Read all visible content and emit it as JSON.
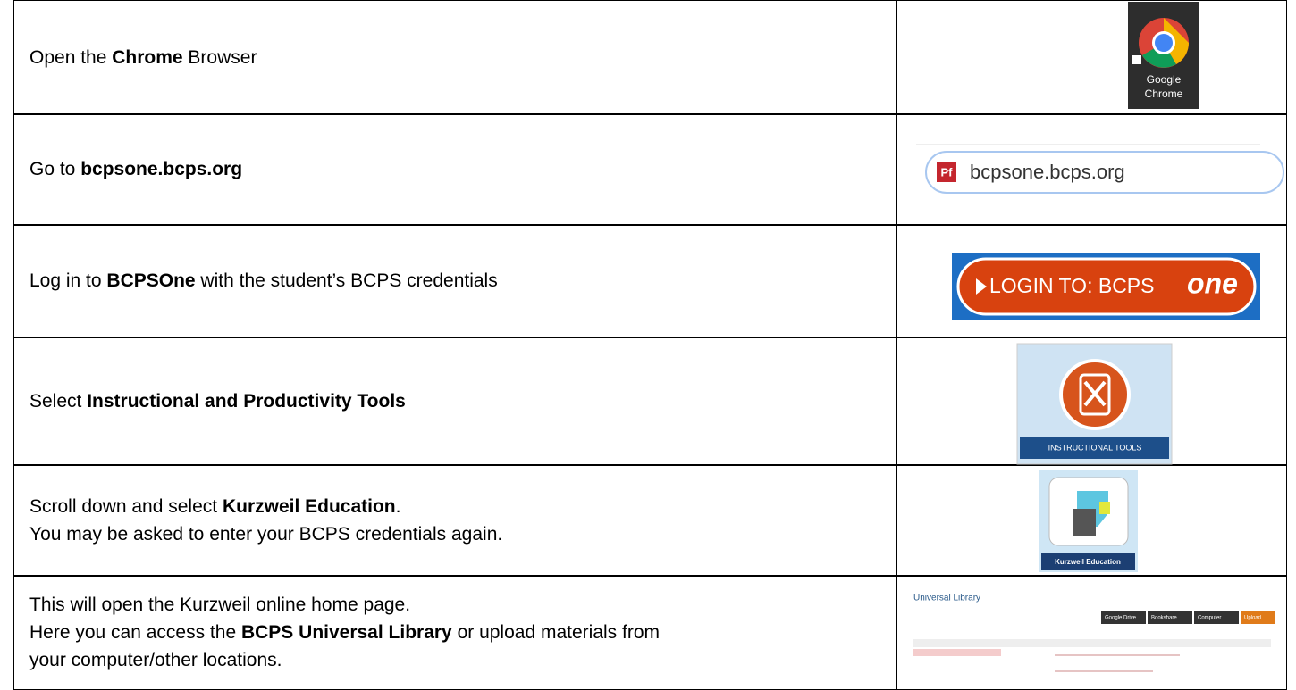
{
  "rows": [
    {
      "lines": [
        [
          {
            "text": "Open the "
          },
          {
            "text": "Chrome",
            "bold": true
          },
          {
            "text": " Browser"
          }
        ]
      ],
      "image": {
        "lines": [
          "Google",
          "Chrome"
        ]
      }
    },
    {
      "lines": [
        [
          {
            "text": "Go to "
          },
          {
            "text": "bcpsone.bcps.org",
            "bold": true
          }
        ]
      ],
      "image": {
        "icon": "Pf",
        "url": "bcpsone.bcps.org"
      }
    },
    {
      "lines": [
        [
          {
            "text": "Log in to "
          },
          {
            "text": "BCPSOne",
            "bold": true
          },
          {
            "text": " with the student’s BCPS credentials"
          }
        ]
      ],
      "image": {
        "text": "LOGIN TO: BCPS",
        "logo": "one"
      }
    },
    {
      "lines": [
        [
          {
            "text": "Select "
          },
          {
            "text": "Instructional and Productivity Tools",
            "bold": true
          }
        ]
      ],
      "image": {
        "caption": "INSTRUCTIONAL TOOLS"
      }
    },
    {
      "lines": [
        [
          {
            "text": "Scroll down and select "
          },
          {
            "text": "Kurzweil Education",
            "bold": true
          },
          {
            "text": "."
          }
        ],
        [
          {
            "text": "You may be asked to enter your BCPS credentials again."
          }
        ]
      ],
      "image": {
        "caption": "Kurzweil Education"
      }
    },
    {
      "lines": [
        [
          {
            "text": "This will open the Kurzweil online home page."
          }
        ],
        [
          {
            "text": "Here you can access the "
          },
          {
            "text": "BCPS Universal Library",
            "bold": true
          },
          {
            "text": " or upload materials from"
          }
        ],
        [
          {
            "text": "your computer/other locations."
          }
        ]
      ],
      "image": {
        "title": "Universal Library",
        "buttons": [
          "Google Drive",
          "Bookshare",
          "Computer",
          "Upload"
        ]
      }
    }
  ]
}
